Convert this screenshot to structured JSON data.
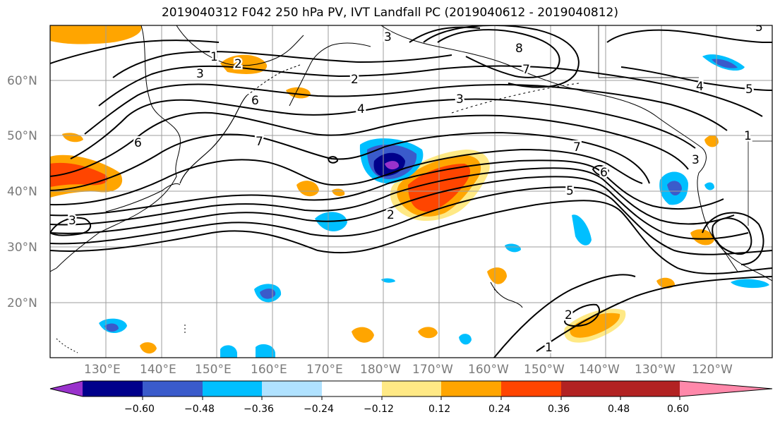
{
  "title": "2019040312 F042 250 hPa PV, IVT Landfall PC (2019040612 - 2019040812)",
  "lat_labels": [
    "60°N",
    "50°N",
    "40°N",
    "30°N",
    "20°N"
  ],
  "lon_labels": [
    "130°E",
    "140°E",
    "150°E",
    "160°E",
    "170°E",
    "180°W",
    "170°W",
    "160°W",
    "150°W",
    "140°W",
    "130°W",
    "120°W"
  ],
  "contour_labels": [
    "1",
    "2",
    "3",
    "4",
    "5",
    "6",
    "7",
    "8"
  ],
  "colorbar": {
    "ticks": [
      "−0.60",
      "−0.48",
      "−0.36",
      "−0.24",
      "−0.12",
      "0.12",
      "0.24",
      "0.36",
      "0.48",
      "0.60"
    ],
    "colors": [
      "#9932cc",
      "#00008b",
      "#3a5bcb",
      "#00bfff",
      "#b0e2ff",
      "#ffffff",
      "#ffe985",
      "#ffa500",
      "#ff4500",
      "#b22222",
      "#ff88aa"
    ]
  }
}
